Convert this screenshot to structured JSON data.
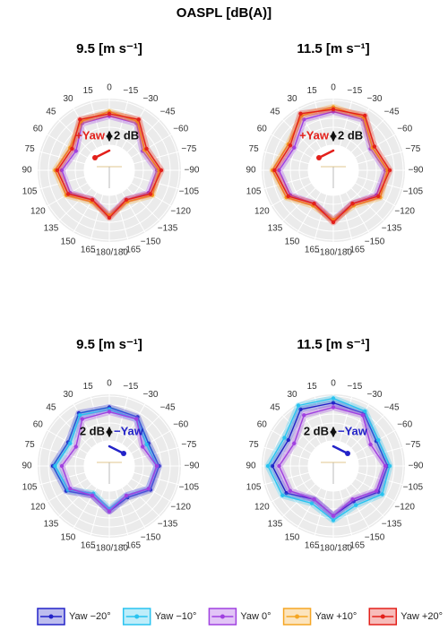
{
  "title": "OASPL [dB(A)]",
  "legend": [
    {
      "name": "Yaw −20°",
      "color": "#2323c8"
    },
    {
      "name": "Yaw −10°",
      "color": "#29c3f0"
    },
    {
      "name": "Yaw 0°",
      "color": "#a040e0"
    },
    {
      "name": "Yaw +10°",
      "color": "#f5a623"
    },
    {
      "name": "Yaw +20°",
      "color": "#e3201b"
    }
  ],
  "chart_data": [
    {
      "type": "polar",
      "title": "9.5 [m s⁻¹]",
      "theta": [
        0,
        -30,
        -60,
        -90,
        -120,
        -150,
        180,
        150,
        120,
        90,
        60,
        30
      ],
      "rlim": [
        84,
        94
      ],
      "rticks": [
        84,
        86,
        88,
        90,
        92,
        94
      ],
      "angle_ticks": [
        0,
        {
          "value": -15,
          "label": "−15"
        },
        {
          "value": -30,
          "label": "−30"
        },
        {
          "value": -45,
          "label": "−45"
        },
        {
          "value": -60,
          "label": "−60"
        },
        {
          "value": -75,
          "label": "−75"
        },
        {
          "value": -90,
          "label": "−90"
        },
        {
          "value": -105,
          "label": "−105"
        },
        {
          "value": -120,
          "label": "−120"
        },
        {
          "value": -135,
          "label": "−135"
        },
        {
          "value": -150,
          "label": "−150"
        },
        {
          "value": -165,
          "label": "−165"
        },
        {
          "value": 180,
          "label": "−180/180"
        },
        165,
        150,
        135,
        120,
        105,
        90,
        75,
        60,
        45,
        30,
        15
      ],
      "annotation": {
        "text": "+Yaw",
        "color": "#e3201b",
        "side": "left"
      },
      "scale_bar": {
        "value": 2,
        "label": "2 dB"
      },
      "series": [
        {
          "name": "Yaw 0°",
          "color": "#a040e0",
          "values": [
            90.5,
            90.5,
            87,
            89,
            88.5,
            86,
            88.5,
            86,
            88.5,
            89,
            87,
            90.5
          ]
        },
        {
          "name": "Yaw +10°",
          "color": "#f5a623",
          "values": [
            91.5,
            91,
            87.5,
            89.5,
            89.5,
            86.5,
            88.5,
            86.5,
            89.5,
            90.5,
            88.5,
            91
          ]
        },
        {
          "name": "Yaw +20°",
          "color": "#e3201b",
          "values": [
            91,
            91.5,
            88,
            90,
            89,
            86,
            89,
            86,
            89,
            90,
            88,
            91.5
          ]
        }
      ]
    },
    {
      "type": "polar",
      "title": "11.5 [m s⁻¹]",
      "theta": [
        0,
        -30,
        -60,
        -90,
        -120,
        -150,
        180,
        150,
        120,
        90,
        60,
        30
      ],
      "rlim": [
        84,
        94
      ],
      "rticks": [
        84,
        86,
        88,
        90,
        92,
        94
      ],
      "angle_ticks": [
        0,
        {
          "value": -15,
          "label": "−15"
        },
        {
          "value": -30,
          "label": "−30"
        },
        {
          "value": -45,
          "label": "−45"
        },
        {
          "value": -60,
          "label": "−60"
        },
        {
          "value": -75,
          "label": "−75"
        },
        {
          "value": -90,
          "label": "−90"
        },
        {
          "value": -105,
          "label": "−105"
        },
        {
          "value": -120,
          "label": "−120"
        },
        {
          "value": -135,
          "label": "−135"
        },
        {
          "value": -150,
          "label": "−150"
        },
        {
          "value": -165,
          "label": "−165"
        },
        {
          "value": 180,
          "label": "−180/180"
        },
        165,
        150,
        135,
        120,
        105,
        90,
        75,
        60,
        45,
        30,
        15
      ],
      "annotation": {
        "text": "+Yaw",
        "color": "#e3201b",
        "side": "left"
      },
      "scale_bar": {
        "value": 2,
        "label": "2 dB"
      },
      "series": [
        {
          "name": "Yaw 0°",
          "color": "#a040e0",
          "values": [
            91.5,
            91.5,
            88,
            90,
            89.5,
            87,
            89.5,
            87,
            89.5,
            90.5,
            88.5,
            91.5
          ]
        },
        {
          "name": "Yaw +10°",
          "color": "#f5a623",
          "values": [
            92.5,
            92,
            88.5,
            90.5,
            90.5,
            87.5,
            89.5,
            87.5,
            90.5,
            92,
            90,
            92.5
          ]
        },
        {
          "name": "Yaw +20°",
          "color": "#e3201b",
          "values": [
            92,
            92.5,
            89,
            91,
            90,
            87,
            90,
            87,
            90,
            91.5,
            89.5,
            93
          ]
        }
      ]
    },
    {
      "type": "polar",
      "title": "9.5 [m s⁻¹]",
      "theta": [
        0,
        -30,
        -60,
        -90,
        -120,
        -150,
        180,
        150,
        120,
        90,
        60,
        30
      ],
      "rlim": [
        84,
        94
      ],
      "rticks": [
        84,
        86,
        88,
        90,
        92,
        94
      ],
      "angle_ticks": [
        0,
        {
          "value": -15,
          "label": "−15"
        },
        {
          "value": -30,
          "label": "−30"
        },
        {
          "value": -45,
          "label": "−45"
        },
        {
          "value": -60,
          "label": "−60"
        },
        {
          "value": -75,
          "label": "−75"
        },
        {
          "value": -90,
          "label": "−90"
        },
        {
          "value": -105,
          "label": "−105"
        },
        {
          "value": -120,
          "label": "−120"
        },
        {
          "value": -135,
          "label": "−135"
        },
        {
          "value": -150,
          "label": "−150"
        },
        {
          "value": -165,
          "label": "−165"
        },
        {
          "value": 180,
          "label": "−180/180"
        },
        165,
        150,
        135,
        120,
        105,
        90,
        75,
        60,
        45,
        30,
        15
      ],
      "annotation": {
        "text": "−Yaw",
        "color": "#2323c8",
        "side": "right"
      },
      "scale_bar": {
        "value": 2,
        "label": "2 dB"
      },
      "series": [
        {
          "name": "Yaw −20°",
          "color": "#2323c8",
          "values": [
            91.5,
            91,
            88.5,
            89.5,
            89,
            86.5,
            88.5,
            86,
            89.5,
            91,
            89,
            92
          ]
        },
        {
          "name": "Yaw −10°",
          "color": "#29c3f0",
          "values": [
            91,
            90.5,
            88,
            89,
            88.5,
            86,
            88,
            85.5,
            89,
            90.5,
            88.5,
            91.5
          ]
        },
        {
          "name": "Yaw 0°",
          "color": "#a040e0",
          "values": [
            90.5,
            90.5,
            87,
            89,
            88.5,
            86,
            88.5,
            86,
            88.5,
            89,
            87,
            90.5
          ]
        }
      ]
    },
    {
      "type": "polar",
      "title": "11.5 [m s⁻¹]",
      "theta": [
        0,
        -30,
        -60,
        -90,
        -120,
        -150,
        180,
        150,
        120,
        90,
        60,
        30
      ],
      "rlim": [
        84,
        94
      ],
      "rticks": [
        84,
        86,
        88,
        90,
        92,
        94
      ],
      "angle_ticks": [
        0,
        {
          "value": -15,
          "label": "−15"
        },
        {
          "value": -30,
          "label": "−30"
        },
        {
          "value": -45,
          "label": "−45"
        },
        {
          "value": -60,
          "label": "−60"
        },
        {
          "value": -75,
          "label": "−75"
        },
        {
          "value": -90,
          "label": "−90"
        },
        {
          "value": -105,
          "label": "−105"
        },
        {
          "value": -120,
          "label": "−120"
        },
        {
          "value": -135,
          "label": "−135"
        },
        {
          "value": -150,
          "label": "−150"
        },
        {
          "value": -165,
          "label": "−165"
        },
        {
          "value": 180,
          "label": "−180/180"
        },
        165,
        150,
        135,
        120,
        105,
        90,
        75,
        60,
        45,
        30,
        15
      ],
      "annotation": {
        "text": "−Yaw",
        "color": "#2323c8",
        "side": "right"
      },
      "scale_bar": {
        "value": 2,
        "label": "2 dB"
      },
      "series": [
        {
          "name": "Yaw −20°",
          "color": "#2323c8",
          "values": [
            92.5,
            92,
            89.5,
            90.5,
            90,
            87.5,
            89.5,
            87,
            90.5,
            92,
            90,
            93
          ]
        },
        {
          "name": "Yaw −10°",
          "color": "#29c3f0",
          "values": [
            93.5,
            92.5,
            90,
            91,
            91,
            88.5,
            90.5,
            88,
            91.5,
            93,
            91,
            94
          ]
        },
        {
          "name": "Yaw 0°",
          "color": "#a040e0",
          "values": [
            91.5,
            91.5,
            88,
            90,
            89.5,
            87,
            89.5,
            87,
            89.5,
            90.5,
            88.5,
            91.5
          ]
        }
      ]
    }
  ]
}
